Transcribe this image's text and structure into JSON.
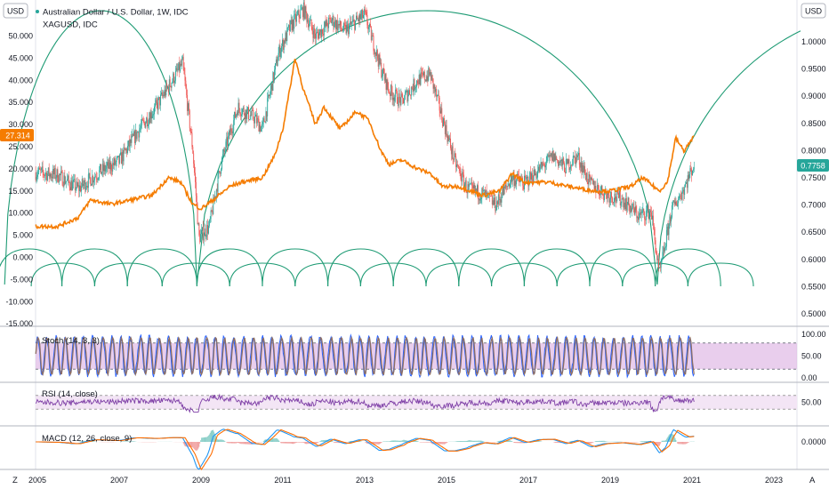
{
  "header": {
    "left_scale": "USD",
    "right_scale": "USD",
    "symbol_title": "Australian Dollar / U.S. Dollar, 1W, IDC",
    "overlay_title": "XAGUSD, IDC"
  },
  "badges": {
    "left_value": "27.314",
    "right_value": "0.7758"
  },
  "colors": {
    "candle_up": "#26a69a",
    "candle_down": "#ef5350",
    "overlay": "#f57c00",
    "cycles": "#1e9b74",
    "stoch_k": "#2962ff",
    "stoch_d": "#8d6e63",
    "rsi": "#7e3fa6",
    "macd": "#2196f3",
    "signal": "#ff6d00",
    "band_fill": "#e1bee7"
  },
  "indicators": {
    "stoch": "Stoch (14, 3, 3)",
    "rsi": "RSI (14, close)",
    "macd": "MACD (12, 26, close, 9)"
  },
  "footer": {
    "left": "Z",
    "right": "A"
  },
  "chart_data": {
    "type": "line",
    "x_ticks": [
      "2005",
      "2007",
      "2009",
      "2011",
      "2013",
      "2015",
      "2017",
      "2019",
      "2021",
      "2023"
    ],
    "left_axis": {
      "ticks": [
        "50.000",
        "45.000",
        "40.000",
        "35.000",
        "30.000",
        "25.000",
        "20.000",
        "15.000",
        "10.000",
        "5.000",
        "0.000",
        "-5.000",
        "-10.000",
        "-15.000"
      ]
    },
    "right_axis": {
      "ticks": [
        "1.0000",
        "0.9500",
        "0.9000",
        "0.8500",
        "0.8000",
        "0.7500",
        "0.7000",
        "0.6500",
        "0.6000",
        "0.5500",
        "0.5000"
      ]
    },
    "stoch_axis": {
      "ticks": [
        "100.00",
        "50.00",
        "0.00"
      ],
      "bands": [
        80,
        20
      ]
    },
    "rsi_axis": {
      "ticks": [
        "50.00"
      ],
      "bands": [
        70,
        30
      ]
    },
    "macd_axis": {
      "ticks": [
        "0.0000"
      ]
    },
    "audusd_weekly": {
      "x": [
        2005.0,
        2005.5,
        2006.0,
        2006.5,
        2007.0,
        2007.5,
        2007.9,
        2008.3,
        2008.55,
        2008.8,
        2008.95,
        2009.2,
        2009.5,
        2009.9,
        2010.3,
        2010.5,
        2010.9,
        2011.2,
        2011.5,
        2011.8,
        2012.2,
        2012.5,
        2013.0,
        2013.4,
        2013.6,
        2013.9,
        2014.3,
        2014.6,
        2014.9,
        2015.2,
        2015.5,
        2015.9,
        2016.2,
        2016.6,
        2016.9,
        2017.2,
        2017.6,
        2017.9,
        2018.2,
        2018.5,
        2018.9,
        2019.3,
        2019.7,
        2020.0,
        2020.2,
        2020.5,
        2020.8,
        2021.05
      ],
      "y": [
        0.76,
        0.755,
        0.73,
        0.76,
        0.78,
        0.84,
        0.88,
        0.93,
        0.96,
        0.8,
        0.64,
        0.66,
        0.78,
        0.88,
        0.86,
        0.84,
        0.98,
        1.03,
        1.06,
        1.01,
        1.04,
        1.02,
        1.05,
        0.95,
        0.91,
        0.89,
        0.93,
        0.94,
        0.86,
        0.78,
        0.73,
        0.72,
        0.7,
        0.75,
        0.74,
        0.76,
        0.79,
        0.77,
        0.79,
        0.74,
        0.72,
        0.71,
        0.68,
        0.69,
        0.57,
        0.69,
        0.73,
        0.7758
      ]
    },
    "xagusd_weekly": {
      "x": [
        2005.0,
        2005.5,
        2006.0,
        2006.3,
        2006.8,
        2007.3,
        2007.8,
        2008.2,
        2008.5,
        2008.8,
        2009.0,
        2009.3,
        2009.7,
        2010.0,
        2010.5,
        2010.8,
        2011.0,
        2011.3,
        2011.5,
        2011.8,
        2012.0,
        2012.4,
        2012.8,
        2013.1,
        2013.4,
        2013.6,
        2013.9,
        2014.3,
        2014.6,
        2014.9,
        2015.3,
        2015.9,
        2016.3,
        2016.6,
        2016.9,
        2017.5,
        2018.0,
        2018.6,
        2019.0,
        2019.5,
        2019.8,
        2020.2,
        2020.4,
        2020.6,
        2020.8,
        2021.05
      ],
      "y": [
        7,
        7,
        9,
        13,
        12,
        13,
        14,
        18,
        17,
        12,
        11,
        13,
        16,
        17,
        18,
        23,
        29,
        45,
        38,
        30,
        34,
        29,
        33,
        31,
        24,
        21,
        22,
        20,
        19,
        16,
        16,
        14,
        15,
        19,
        17,
        17,
        16,
        15,
        15,
        16,
        18,
        15,
        17,
        27,
        24,
        27.314
      ]
    },
    "hurst_cycles": {
      "large_troughs": [
        2004.2,
        2008.9,
        2020.15
      ],
      "small_cycle_troughs": [
        2005.6,
        2007.2,
        2008.9,
        2010.5,
        2012.1,
        2013.7,
        2015.3,
        2016.9,
        2018.5,
        2020.1,
        2021.7
      ],
      "mid_cycle_troughs": [
        2004.85,
        2006.4,
        2008.05,
        2009.7,
        2011.3,
        2012.9,
        2014.5,
        2016.1,
        2017.7,
        2019.3,
        2020.9,
        2022.5
      ]
    }
  }
}
